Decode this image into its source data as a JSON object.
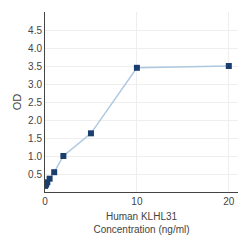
{
  "chart_data": {
    "type": "line",
    "x": [
      0,
      0.0625,
      0.125,
      0.25,
      0.5,
      1,
      2,
      5,
      10,
      20
    ],
    "values": [
      0.17,
      0.19,
      0.22,
      0.27,
      0.37,
      0.55,
      1.0,
      1.63,
      3.45,
      3.5
    ],
    "xlabel": "Human KLHL31\nConcentration (ng/ml)",
    "ylabel": "OD",
    "xlim": [
      0,
      21
    ],
    "ylim": [
      0,
      5.0
    ],
    "xticks": [
      0,
      10,
      20
    ],
    "yticks": [
      0.5,
      {
        "value": 1.0,
        "label": "1.0"
      },
      1.5,
      {
        "value": 2.0,
        "label": "2.0"
      },
      2.5,
      {
        "value": 3.0,
        "label": "3.0"
      },
      3.5,
      {
        "value": 4.0,
        "label": "4.0"
      },
      4.5
    ],
    "color": "#adc8e0",
    "colors": [
      "#1a3f6f",
      "#1a3f6f",
      "#1a3f6f",
      "#1a3f6f",
      "#1a3f6f",
      "#1a3f6f",
      "#1a3f6f",
      "#1a3f6f",
      "#1a3f6f",
      "#1a3f6f"
    ],
    "marker": "square",
    "grid": true
  }
}
